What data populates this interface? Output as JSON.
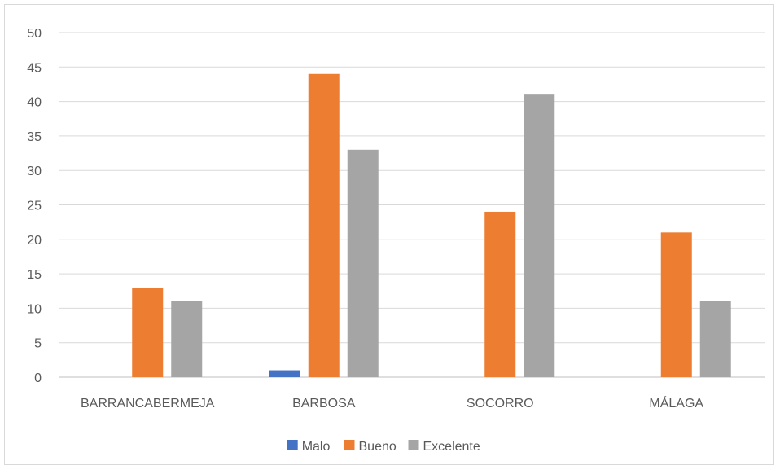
{
  "chart_data": {
    "type": "bar",
    "title": "",
    "xlabel": "",
    "ylabel": "",
    "categories": [
      "BARRANCABERMEJA",
      "BARBOSA",
      "SOCORRO",
      "MÁLAGA"
    ],
    "ylim": [
      0,
      50
    ],
    "yticks": [
      0,
      5,
      10,
      15,
      20,
      25,
      30,
      35,
      40,
      45,
      50
    ],
    "grid": true,
    "legend_position": "bottom",
    "series": [
      {
        "name": "Malo",
        "color": "#4472c4",
        "values": [
          0,
          1,
          0,
          0
        ]
      },
      {
        "name": "Bueno",
        "color": "#ed7d31",
        "values": [
          13,
          44,
          24,
          21
        ]
      },
      {
        "name": "Excelente",
        "color": "#a5a5a5",
        "values": [
          11,
          33,
          41,
          11
        ]
      }
    ]
  }
}
